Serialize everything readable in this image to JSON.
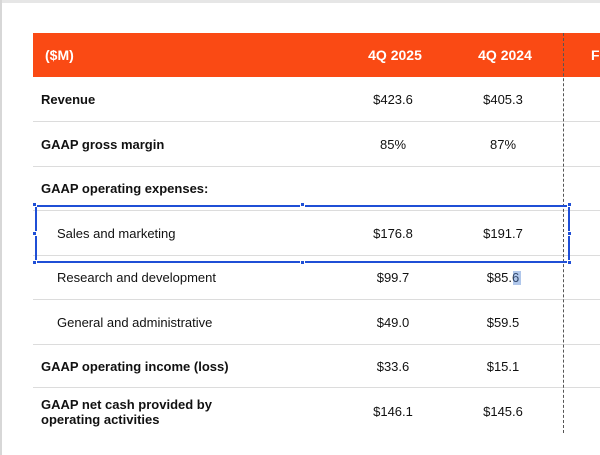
{
  "table": {
    "headers": {
      "label": "($M)",
      "col1": "4Q 2025",
      "col2": "4Q 2024",
      "col3_partial": "F"
    },
    "rows": [
      {
        "label": "Revenue",
        "q4_2025": "$423.6",
        "q4_2024": "$405.3"
      },
      {
        "label": "GAAP gross margin",
        "q4_2025": "85%",
        "q4_2024": "87%"
      },
      {
        "label": "GAAP operating expenses:",
        "q4_2025": "",
        "q4_2024": ""
      },
      {
        "label": "Sales and marketing",
        "q4_2025": "$176.8",
        "q4_2024": "$191.7"
      },
      {
        "label": "Research and development",
        "q4_2025": "$99.7",
        "q4_2024": "$85.6"
      },
      {
        "label": "General and administrative",
        "q4_2025": "$49.0",
        "q4_2024": "$59.5"
      },
      {
        "label": "GAAP operating income (loss)",
        "q4_2025": "$33.6",
        "q4_2024": "$15.1"
      },
      {
        "label_line1": "GAAP net cash provided by",
        "label_line2": "operating activities",
        "q4_2025": "$146.1",
        "q4_2024": "$145.6"
      }
    ]
  },
  "colors": {
    "header_bg": "#fa4a14",
    "header_text": "#ffffff",
    "selection": "#1f4fd6"
  }
}
